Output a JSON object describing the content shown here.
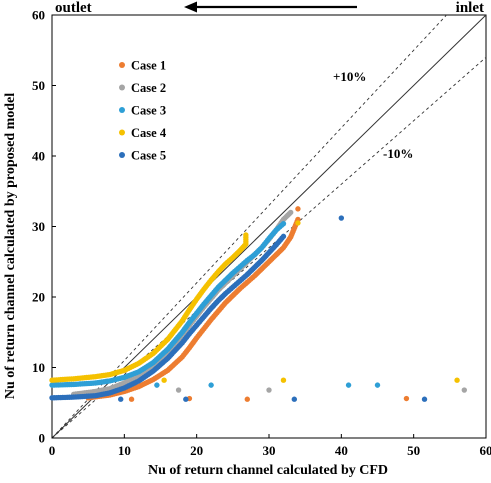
{
  "chart_data": {
    "type": "scatter",
    "xlabel": "Nu of return channel  calculated by CFD",
    "ylabel": "Nu of return channel  calculated by proposed model",
    "xlim": [
      0,
      60
    ],
    "ylim": [
      0,
      60
    ],
    "xticks": [
      "0",
      "10",
      "20",
      "30",
      "40",
      "50",
      "60"
    ],
    "yticks": [
      "0",
      "10",
      "20",
      "30",
      "40",
      "50",
      "60"
    ],
    "grid": false,
    "legend_position": "upper-left",
    "annotations": {
      "outlet": "outlet",
      "inlet": "inlet",
      "plus": "+10%",
      "minus": "-10%"
    },
    "reference_lines": [
      {
        "style": "solid",
        "slope": 1.0,
        "meaning": "y = x"
      },
      {
        "style": "dashed",
        "slope": 1.1
      },
      {
        "style": "dashed",
        "slope": 0.9
      }
    ],
    "series": [
      {
        "name": "Case 1",
        "color": "#ed7d31",
        "curve": [
          [
            5,
            5.7
          ],
          [
            8,
            6.1
          ],
          [
            10,
            6.6
          ],
          [
            12,
            7.3
          ],
          [
            14,
            8.3
          ],
          [
            16,
            9.6
          ],
          [
            18,
            11.5
          ],
          [
            19,
            12.8
          ],
          [
            20,
            14.2
          ],
          [
            21,
            15.5
          ],
          [
            22,
            16.8
          ],
          [
            23,
            18.0
          ],
          [
            24,
            19.2
          ],
          [
            25,
            20.2
          ],
          [
            26,
            21.2
          ],
          [
            27,
            22.1
          ],
          [
            28,
            23.0
          ],
          [
            29,
            24.0
          ],
          [
            30,
            25.0
          ],
          [
            31,
            26.0
          ],
          [
            32,
            27.0
          ],
          [
            33,
            28.5
          ],
          [
            34,
            31.0
          ]
        ],
        "extra": [
          [
            11,
            5.5
          ],
          [
            19,
            5.6
          ],
          [
            27,
            5.5
          ],
          [
            49,
            5.6
          ],
          [
            34,
            32.5
          ]
        ]
      },
      {
        "name": "Case 2",
        "color": "#a5a5a5",
        "curve": [
          [
            3,
            6.2
          ],
          [
            6,
            6.6
          ],
          [
            8,
            7.0
          ],
          [
            10,
            7.8
          ],
          [
            12,
            8.9
          ],
          [
            14,
            10.3
          ],
          [
            16,
            12.2
          ],
          [
            18,
            14.6
          ],
          [
            19,
            16.0
          ],
          [
            20,
            17.3
          ],
          [
            21,
            18.6
          ],
          [
            22,
            19.8
          ],
          [
            23,
            21.0
          ],
          [
            24,
            22.0
          ],
          [
            25,
            23.0
          ],
          [
            26,
            24.0
          ],
          [
            27,
            25.0
          ],
          [
            28,
            26.0
          ],
          [
            29,
            27.0
          ],
          [
            30,
            28.2
          ],
          [
            31,
            29.5
          ],
          [
            32,
            31.0
          ],
          [
            33,
            32.0
          ]
        ],
        "extra": [
          [
            17.5,
            6.8
          ],
          [
            30,
            6.8
          ],
          [
            57,
            6.8
          ]
        ]
      },
      {
        "name": "Case 3",
        "color": "#2e9fd6",
        "curve": [
          [
            0,
            7.5
          ],
          [
            3,
            7.6
          ],
          [
            6,
            7.8
          ],
          [
            8,
            8.1
          ],
          [
            10,
            8.6
          ],
          [
            12,
            9.4
          ],
          [
            14,
            10.7
          ],
          [
            16,
            12.6
          ],
          [
            18,
            15.0
          ],
          [
            19,
            16.4
          ],
          [
            20,
            17.7
          ],
          [
            21,
            19.0
          ],
          [
            22,
            20.2
          ],
          [
            23,
            21.4
          ],
          [
            24,
            22.4
          ],
          [
            25,
            23.4
          ],
          [
            26,
            24.3
          ],
          [
            27,
            25.2
          ],
          [
            28,
            26.0
          ],
          [
            29,
            27.0
          ],
          [
            30,
            28.3
          ],
          [
            31,
            29.5
          ],
          [
            32,
            30.4
          ]
        ],
        "extra": [
          [
            14.5,
            7.5
          ],
          [
            22,
            7.5
          ],
          [
            41,
            7.5
          ],
          [
            45,
            7.5
          ]
        ]
      },
      {
        "name": "Case 4",
        "color": "#f5c100",
        "curve": [
          [
            0,
            8.2
          ],
          [
            3,
            8.4
          ],
          [
            6,
            8.7
          ],
          [
            8,
            9.0
          ],
          [
            10,
            9.6
          ],
          [
            12,
            10.6
          ],
          [
            14,
            12.0
          ],
          [
            16,
            14.0
          ],
          [
            18,
            16.6
          ],
          [
            19,
            18.2
          ],
          [
            20,
            19.7
          ],
          [
            21,
            21.1
          ],
          [
            22,
            22.4
          ],
          [
            23,
            23.6
          ],
          [
            24,
            24.7
          ],
          [
            25,
            25.6
          ],
          [
            26,
            26.6
          ],
          [
            26.8,
            27.5
          ],
          [
            26.8,
            28.8
          ]
        ],
        "extra": [
          [
            15.5,
            8.2
          ],
          [
            32,
            8.2
          ],
          [
            56,
            8.2
          ],
          [
            34,
            30.5
          ]
        ]
      },
      {
        "name": "Case 5",
        "color": "#2c6fbb",
        "curve": [
          [
            0,
            5.7
          ],
          [
            3,
            5.8
          ],
          [
            6,
            6.0
          ],
          [
            8,
            6.4
          ],
          [
            10,
            7.1
          ],
          [
            12,
            8.1
          ],
          [
            14,
            9.5
          ],
          [
            16,
            11.3
          ],
          [
            18,
            13.5
          ],
          [
            19,
            14.8
          ],
          [
            20,
            16.0
          ],
          [
            21,
            17.2
          ],
          [
            22,
            18.4
          ],
          [
            23,
            19.5
          ],
          [
            24,
            20.5
          ],
          [
            25,
            21.4
          ],
          [
            26,
            22.3
          ],
          [
            27,
            23.2
          ],
          [
            28,
            24.2
          ],
          [
            29,
            25.2
          ],
          [
            30,
            26.3
          ],
          [
            31,
            27.4
          ],
          [
            32,
            28.6
          ]
        ],
        "extra": [
          [
            9.5,
            5.5
          ],
          [
            18.5,
            5.5
          ],
          [
            33.5,
            5.5
          ],
          [
            51.5,
            5.5
          ],
          [
            40,
            31.2
          ]
        ]
      }
    ]
  }
}
